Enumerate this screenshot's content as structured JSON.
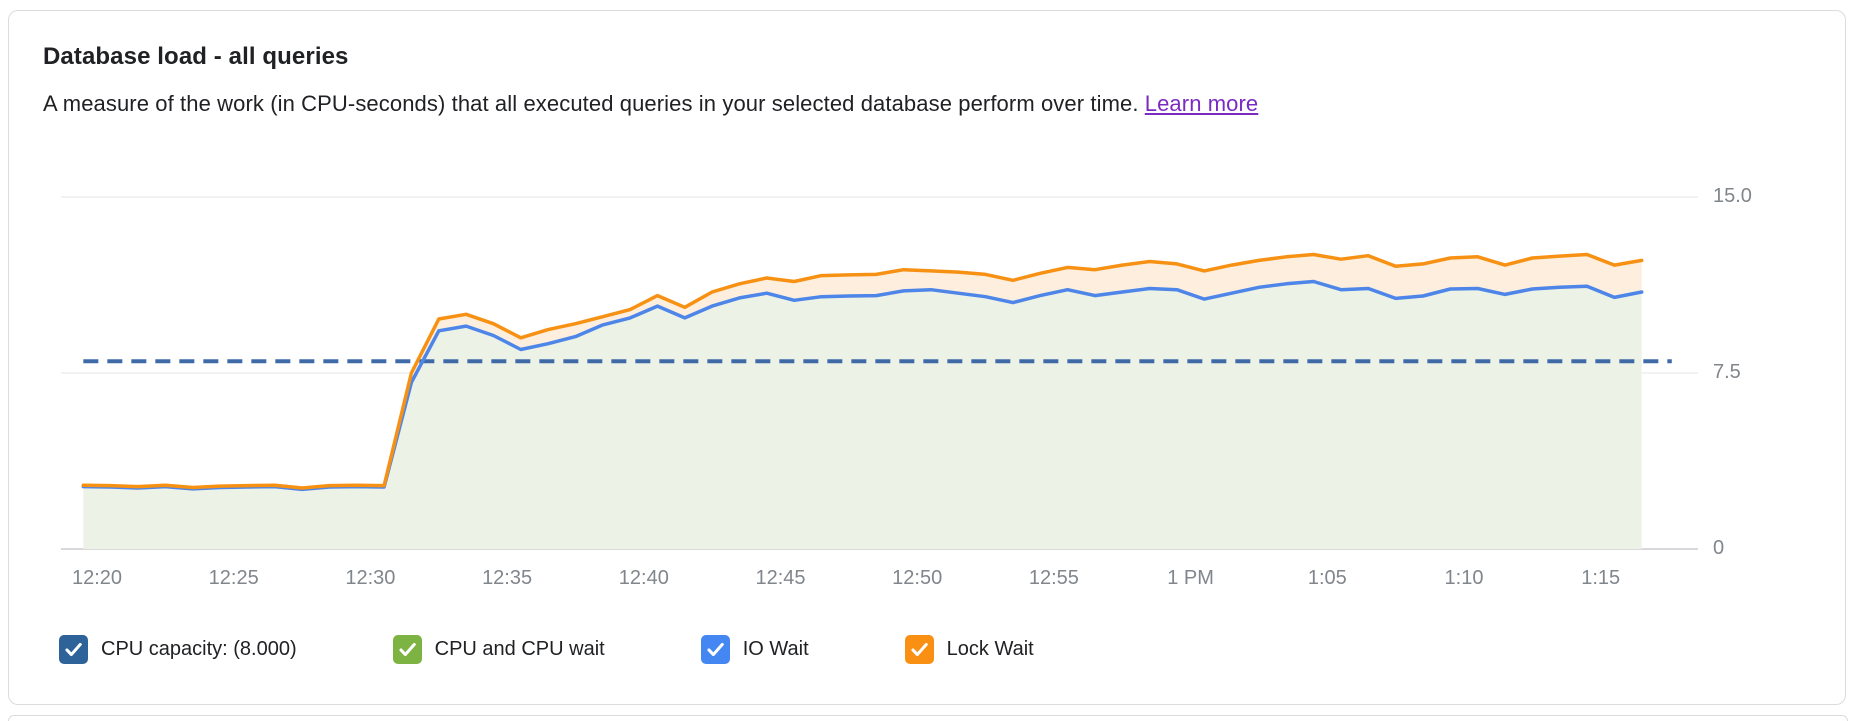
{
  "card": {
    "title": "Database load - all queries",
    "subtitle": "A measure of the work (in CPU-seconds) that all executed queries in your selected database perform over time.",
    "learn_more": "Learn more"
  },
  "colors": {
    "link": "#7b2bbf",
    "capacity_checkbox": "#2d6398",
    "cpu_checkbox": "#7cb342",
    "io_checkbox": "#4487f2",
    "lock_checkbox": "#f99014",
    "capacity_line": "#3e6ba8",
    "io_line": "#4d86e8",
    "lock_line": "#f79113",
    "io_fill": "#edf2e6",
    "lock_fill": "#fdeede",
    "grid_line": "#eceef0",
    "axis_line": "#d7d9dc",
    "axis_text": "#80868b"
  },
  "legend": [
    {
      "id": "cpu-capacity",
      "label": "CPU capacity: (8.000)",
      "color": "#2d6398",
      "checked": true
    },
    {
      "id": "cpu-and-cpu-wait",
      "label": "CPU and CPU wait",
      "color": "#7cb342",
      "checked": true
    },
    {
      "id": "io-wait",
      "label": "IO Wait",
      "color": "#4487f2",
      "checked": true
    },
    {
      "id": "lock-wait",
      "label": "Lock Wait",
      "color": "#f99014",
      "checked": true
    }
  ],
  "chart_data": {
    "type": "area",
    "title": "Database load - all queries",
    "xlabel": "",
    "ylabel": "",
    "ylim": [
      0,
      15
    ],
    "grid": "horizontal",
    "legend_position": "bottom",
    "y_axis_side": "right",
    "y_ticks": [
      {
        "label": "15.0",
        "v": 15
      },
      {
        "label": "7.5",
        "v": 7.5
      },
      {
        "label": "0",
        "v": 0
      }
    ],
    "x_ticks": [
      {
        "label": "12:20",
        "t": 20
      },
      {
        "label": "12:25",
        "t": 25
      },
      {
        "label": "12:30",
        "t": 30
      },
      {
        "label": "12:35",
        "t": 35
      },
      {
        "label": "12:40",
        "t": 40
      },
      {
        "label": "12:45",
        "t": 45
      },
      {
        "label": "12:50",
        "t": 50
      },
      {
        "label": "12:55",
        "t": 55
      },
      {
        "label": "1 PM",
        "t": 60
      },
      {
        "label": "1:05",
        "t": 65
      },
      {
        "label": "1:10",
        "t": 70
      },
      {
        "label": "1:15",
        "t": 75
      }
    ],
    "capacity_line": {
      "name": "CPU capacity",
      "value": 8.0,
      "display": "8.000",
      "style": "dashed",
      "t_start": 19.5,
      "t_end": 77.6
    },
    "x_minutes": [
      19.5,
      20.5,
      21.5,
      22.5,
      23.5,
      24.5,
      25.5,
      26.5,
      27.5,
      28.5,
      29.5,
      30.5,
      31.5,
      32.5,
      33.5,
      34.5,
      35.5,
      36.5,
      37.5,
      38.5,
      39.5,
      40.5,
      41.5,
      42.5,
      43.5,
      44.5,
      45.5,
      46.5,
      47.5,
      48.5,
      49.5,
      50.5,
      51.5,
      52.5,
      53.5,
      54.5,
      55.5,
      56.5,
      57.5,
      58.5,
      59.5,
      60.5,
      61.5,
      62.5,
      63.5,
      64.5,
      65.5,
      66.5,
      67.5,
      68.5,
      69.5,
      70.5,
      71.5,
      72.5,
      73.5,
      74.5,
      75.5,
      76.5
    ],
    "series": [
      {
        "name": "IO Wait",
        "values": [
          2.66,
          2.64,
          2.6,
          2.66,
          2.56,
          2.62,
          2.64,
          2.66,
          2.54,
          2.64,
          2.66,
          2.64,
          7.1,
          9.3,
          9.5,
          9.1,
          8.5,
          8.75,
          9.05,
          9.55,
          9.85,
          10.35,
          9.85,
          10.35,
          10.7,
          10.9,
          10.6,
          10.75,
          10.78,
          10.8,
          11.0,
          11.05,
          10.9,
          10.75,
          10.5,
          10.8,
          11.05,
          10.8,
          10.95,
          11.1,
          11.05,
          10.65,
          10.9,
          11.15,
          11.3,
          11.4,
          11.05,
          11.1,
          10.68,
          10.78,
          11.08,
          11.1,
          10.85,
          11.08,
          11.15,
          11.2,
          10.72,
          10.95
        ]
      },
      {
        "name": "Lock Wait",
        "values": [
          2.72,
          2.7,
          2.66,
          2.72,
          2.62,
          2.68,
          2.7,
          2.72,
          2.6,
          2.7,
          2.72,
          2.7,
          7.5,
          9.8,
          10.0,
          9.6,
          9.0,
          9.35,
          9.6,
          9.9,
          10.2,
          10.8,
          10.3,
          10.95,
          11.3,
          11.55,
          11.4,
          11.65,
          11.68,
          11.7,
          11.9,
          11.85,
          11.8,
          11.7,
          11.45,
          11.75,
          12.0,
          11.9,
          12.1,
          12.25,
          12.15,
          11.85,
          12.1,
          12.3,
          12.45,
          12.55,
          12.35,
          12.5,
          12.05,
          12.15,
          12.4,
          12.45,
          12.1,
          12.4,
          12.48,
          12.55,
          12.1,
          12.3
        ]
      }
    ]
  }
}
